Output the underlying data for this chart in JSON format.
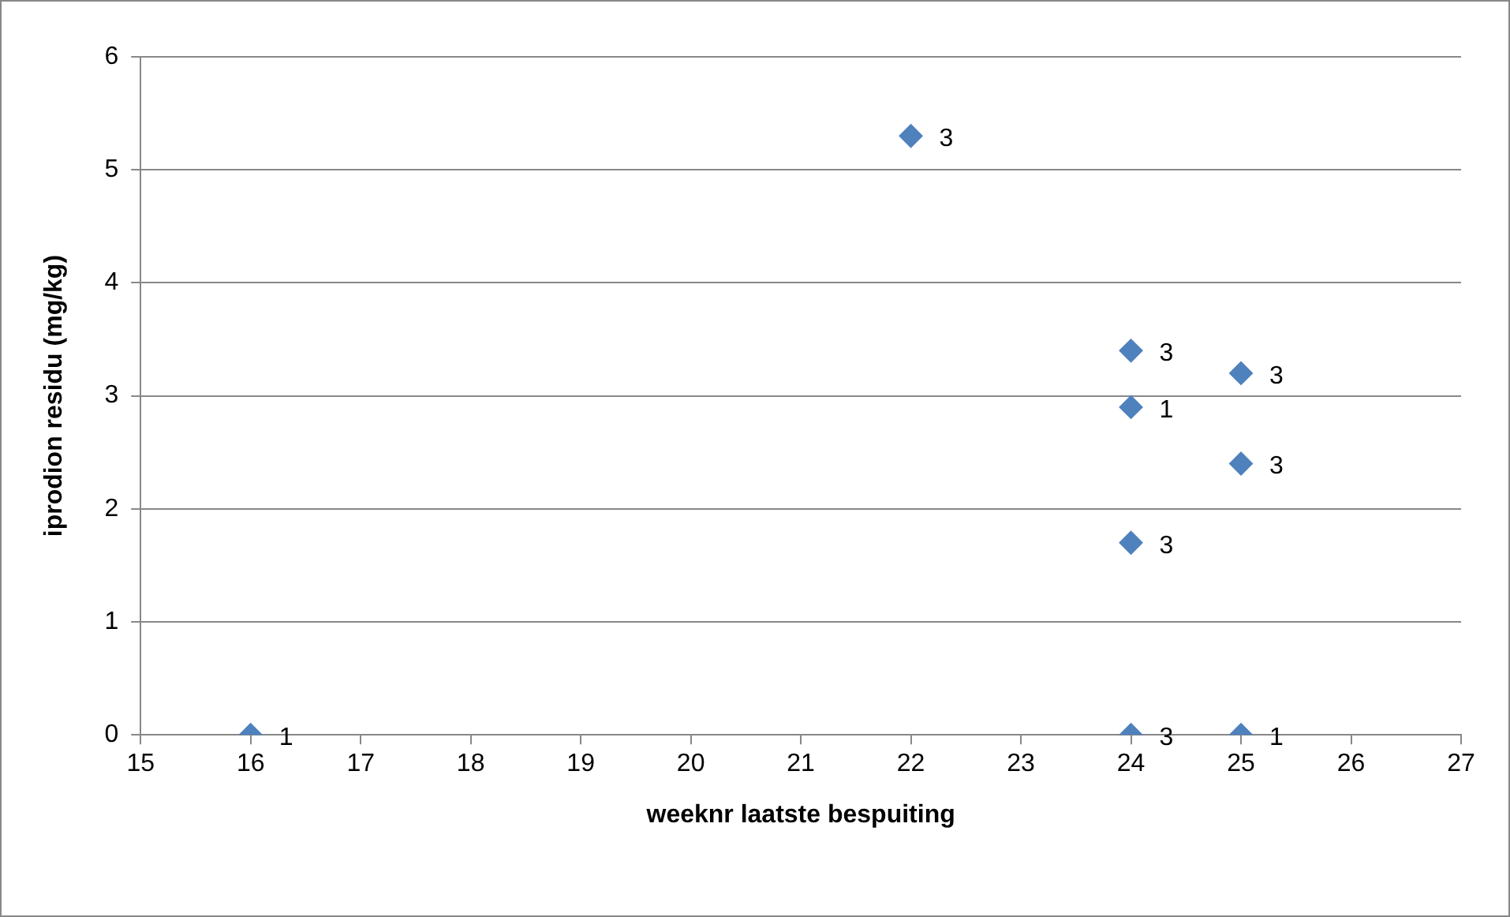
{
  "chart_data": {
    "type": "scatter",
    "xlabel": "weeknr laatste bespuiting",
    "ylabel": "iprodion residu (mg/kg)",
    "x": [
      16,
      22,
      24,
      24,
      24,
      24,
      25,
      25,
      25
    ],
    "series": [
      {
        "color": "#4f81bd",
        "values": [
          0,
          5.3,
          3.4,
          2.9,
          1.7,
          0,
          3.2,
          2.4,
          0
        ]
      }
    ],
    "annotations": [
      {
        "text": "1",
        "x": 16,
        "y": 0
      },
      {
        "text": "3",
        "x": 22,
        "y": 5.3
      },
      {
        "text": "3",
        "x": 24,
        "y": 3.4
      },
      {
        "text": "1",
        "x": 24,
        "y": 2.9
      },
      {
        "text": "3",
        "x": 24,
        "y": 1.7
      },
      {
        "text": "3",
        "x": 24,
        "y": 0
      },
      {
        "text": "3",
        "x": 25,
        "y": 3.2
      },
      {
        "text": "3",
        "x": 25,
        "y": 2.4
      },
      {
        "text": "1",
        "x": 25,
        "y": 0
      }
    ],
    "xlim": [
      15,
      27
    ],
    "xticks": [
      15,
      16,
      17,
      18,
      19,
      20,
      21,
      22,
      23,
      24,
      25,
      26,
      27
    ],
    "ylim": [
      0,
      6
    ],
    "yticks": [
      0,
      1,
      2,
      3,
      4,
      5,
      6
    ],
    "grid": "y",
    "legend": false,
    "marker": "diamond"
  }
}
